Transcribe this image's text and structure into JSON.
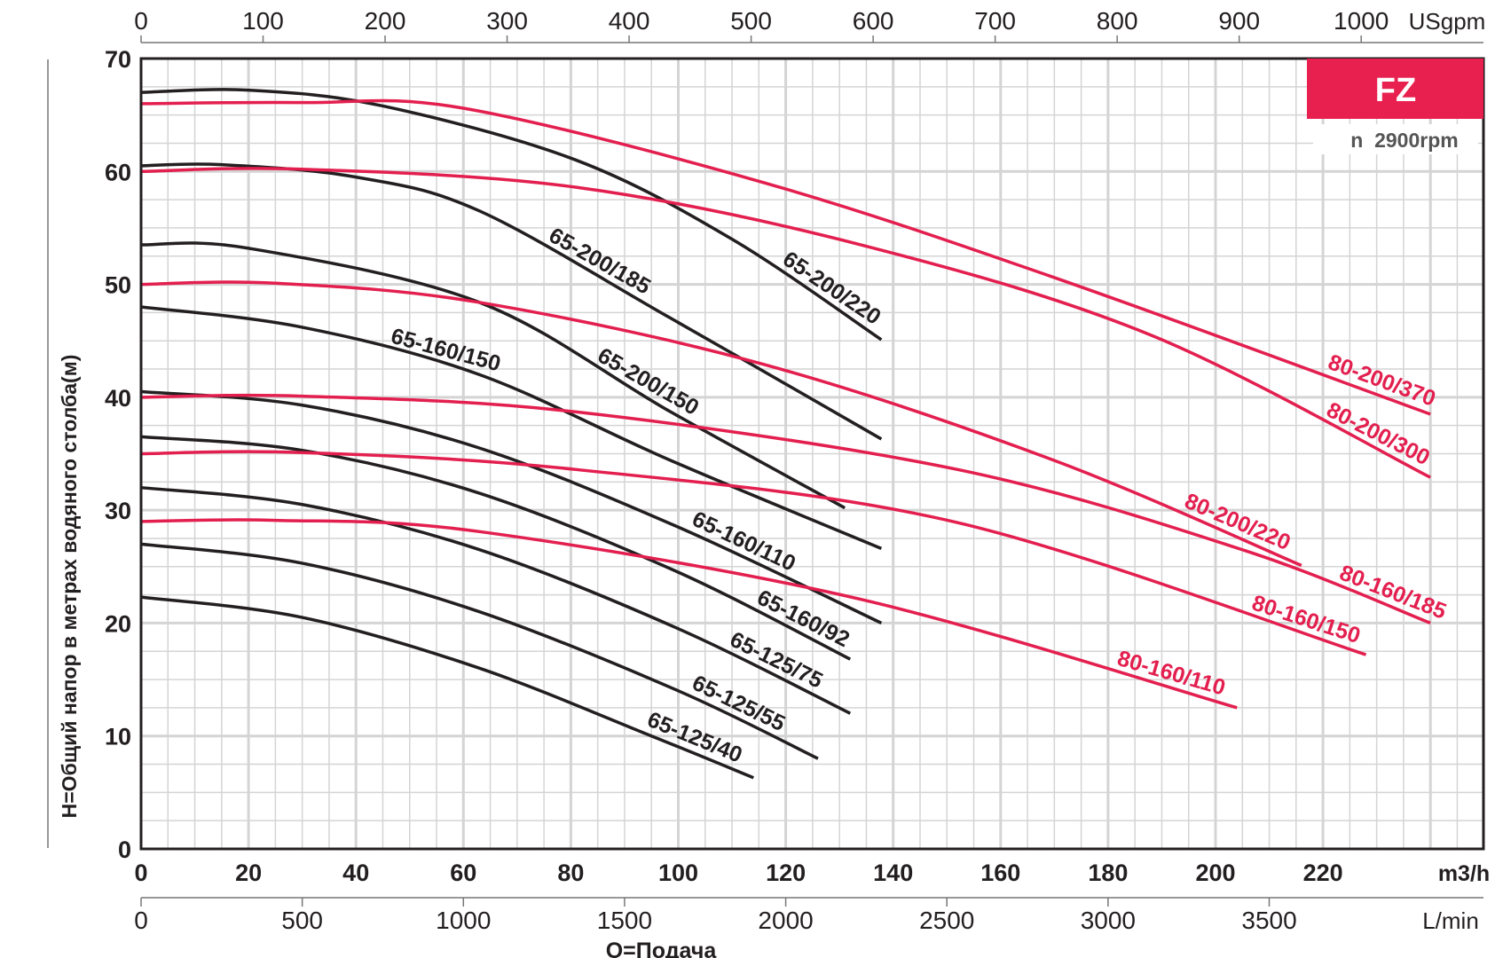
{
  "chart_data": {
    "type": "line",
    "badge": {
      "title": "FZ",
      "subtitle": "n  2900rpm"
    },
    "xlabel": "Q=Подача",
    "ylabel": "H=Общий напор в метрах водяного столба(м)",
    "x_unit": "m3/h",
    "xlim": [
      0,
      250
    ],
    "ylim": [
      0,
      70
    ],
    "grid": true,
    "x_ticks": [
      0,
      20,
      40,
      60,
      80,
      100,
      120,
      140,
      160,
      180,
      200,
      220
    ],
    "y_ticks": [
      0,
      10,
      20,
      30,
      40,
      50,
      60,
      70
    ],
    "top_axis": {
      "unit": "USgpm",
      "ticks": [
        0,
        100,
        200,
        300,
        400,
        500,
        600,
        700,
        800,
        900,
        1000
      ]
    },
    "bottom_axis": {
      "unit": "L/min",
      "ticks": [
        0,
        500,
        1000,
        1500,
        2000,
        2500,
        3000,
        3500
      ]
    },
    "colors": {
      "black_series": "#231f20",
      "red_series": "#e31f4f",
      "badge": "#e8204f",
      "grid": "#d4d4d4"
    },
    "series": [
      {
        "name": "65-200/220",
        "color": "black",
        "points": [
          [
            0,
            67
          ],
          [
            20,
            67.2
          ],
          [
            45,
            65.8
          ],
          [
            81,
            61
          ],
          [
            110,
            54
          ],
          [
            137.8,
            45.1
          ]
        ]
      },
      {
        "name": "65-200/185",
        "color": "black",
        "points": [
          [
            0,
            60.5
          ],
          [
            15,
            60.6
          ],
          [
            40,
            59.5
          ],
          [
            63,
            56.5
          ],
          [
            98.6,
            47
          ],
          [
            137.8,
            36.3
          ]
        ]
      },
      {
        "name": "65-200/150",
        "color": "black",
        "points": [
          [
            0,
            53.5
          ],
          [
            20,
            53.2
          ],
          [
            63,
            48.4
          ],
          [
            98.6,
            38.7
          ],
          [
            131,
            30.2
          ]
        ]
      },
      {
        "name": "65-160/150",
        "color": "black",
        "points": [
          [
            0,
            48
          ],
          [
            30,
            46.2
          ],
          [
            63,
            42
          ],
          [
            98.6,
            34.4
          ],
          [
            137.8,
            26.6
          ]
        ]
      },
      {
        "name": "65-160/110",
        "color": "black",
        "points": [
          [
            0,
            40.5
          ],
          [
            30,
            39.3
          ],
          [
            63,
            35.5
          ],
          [
            100,
            28.5
          ],
          [
            137.8,
            20
          ]
        ]
      },
      {
        "name": "65-160/92",
        "color": "black",
        "points": [
          [
            0,
            36.5
          ],
          [
            30,
            35.3
          ],
          [
            63,
            31.5
          ],
          [
            100,
            24.5
          ],
          [
            132,
            16.8
          ]
        ]
      },
      {
        "name": "65-125/75",
        "color": "black",
        "points": [
          [
            0,
            32
          ],
          [
            30,
            30.5
          ],
          [
            63,
            26.5
          ],
          [
            100,
            19.5
          ],
          [
            132,
            12
          ]
        ]
      },
      {
        "name": "65-125/55",
        "color": "black",
        "points": [
          [
            0,
            27
          ],
          [
            30,
            25.3
          ],
          [
            63,
            21
          ],
          [
            100,
            14
          ],
          [
            126,
            8
          ]
        ]
      },
      {
        "name": "65-125/40",
        "color": "black",
        "points": [
          [
            0,
            22.3
          ],
          [
            30,
            20.5
          ],
          [
            63,
            16
          ],
          [
            95,
            10
          ],
          [
            114,
            6.3
          ]
        ]
      },
      {
        "name": "80-200/370",
        "color": "red",
        "points": [
          [
            0,
            66
          ],
          [
            30,
            66.1
          ],
          [
            60,
            65.6
          ],
          [
            116,
            59
          ],
          [
            170,
            50.6
          ],
          [
            240,
            38.5
          ]
        ]
      },
      {
        "name": "80-200/300",
        "color": "red",
        "points": [
          [
            0,
            60
          ],
          [
            30,
            60.2
          ],
          [
            81,
            58.6
          ],
          [
            134,
            53.5
          ],
          [
            188,
            45.5
          ],
          [
            240,
            32.9
          ]
        ]
      },
      {
        "name": "80-200/220",
        "color": "red",
        "points": [
          [
            0,
            50
          ],
          [
            25,
            50.1
          ],
          [
            63,
            48.4
          ],
          [
            116,
            42.9
          ],
          [
            170,
            34.4
          ],
          [
            216,
            25.1
          ]
        ]
      },
      {
        "name": "80-160/185",
        "color": "red",
        "points": [
          [
            0,
            40
          ],
          [
            30,
            40.1
          ],
          [
            81,
            38.7
          ],
          [
            152,
            33.6
          ],
          [
            205.6,
            26.4
          ],
          [
            240,
            20
          ]
        ]
      },
      {
        "name": "80-160/150",
        "color": "red",
        "points": [
          [
            0,
            35
          ],
          [
            30,
            35.1
          ],
          [
            81,
            33.6
          ],
          [
            152,
            28.9
          ],
          [
            228,
            17.2
          ]
        ]
      },
      {
        "name": "80-160/110",
        "color": "red",
        "points": [
          [
            0,
            29
          ],
          [
            25,
            29.1
          ],
          [
            63,
            28.1
          ],
          [
            134,
            22.1
          ],
          [
            204,
            12.5
          ]
        ]
      }
    ]
  }
}
